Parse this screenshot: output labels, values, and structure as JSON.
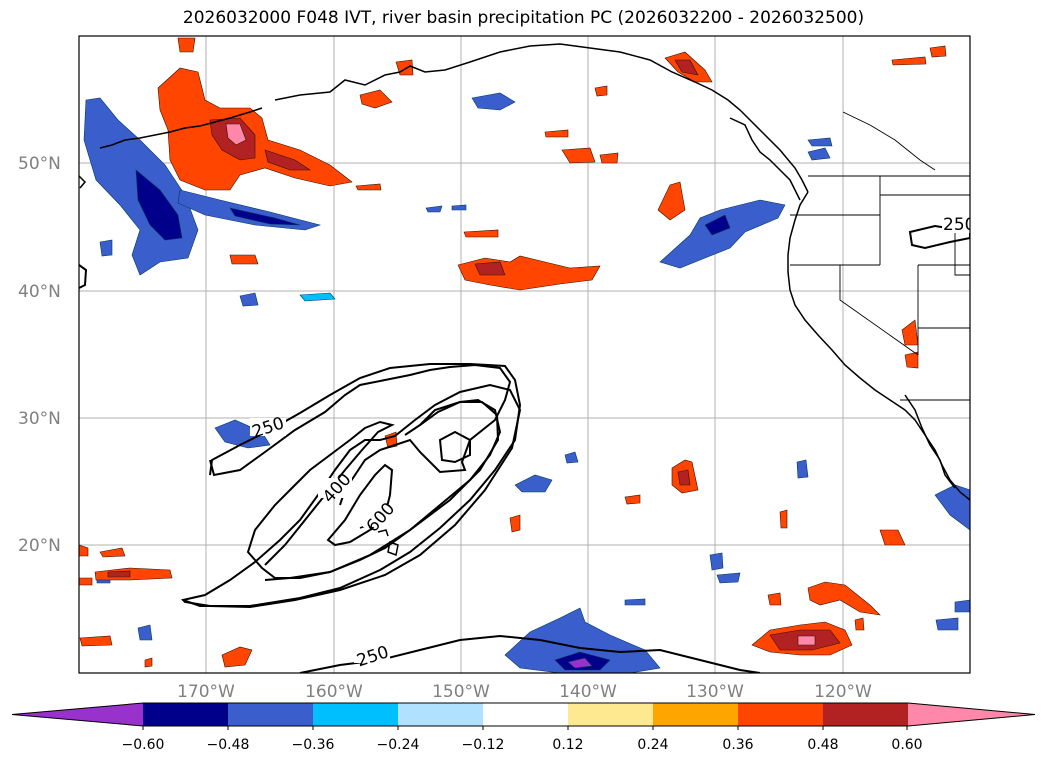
{
  "title": "2026032000 F048 IVT, river basin precipitation PC (2026032200 - 2026032500)",
  "axes": {
    "lat_labels": [
      "50°N",
      "40°N",
      "30°N",
      "20°N"
    ],
    "lon_labels": [
      "170°W",
      "160°W",
      "150°W",
      "140°W",
      "130°W",
      "120°W"
    ],
    "lon_range": [
      -180,
      -110
    ],
    "lat_range": [
      10,
      60
    ]
  },
  "contours": {
    "labels": [
      "250",
      "400",
      "600",
      "250",
      "250"
    ]
  },
  "colorbar": {
    "ticks": [
      "−0.60",
      "−0.48",
      "−0.36",
      "−0.24",
      "−0.12",
      "0.12",
      "0.24",
      "0.36",
      "0.48",
      "0.60"
    ],
    "colors": [
      "#9932cc",
      "#00008b",
      "#3a5fcd",
      "#00bfff",
      "#b0e2ff",
      "#ffffff",
      "#ffe990",
      "#ffa500",
      "#ff4500",
      "#b22222",
      "#ff88aa"
    ]
  },
  "colors": {
    "coast": "#000000",
    "grid": "#b0b0b0"
  }
}
